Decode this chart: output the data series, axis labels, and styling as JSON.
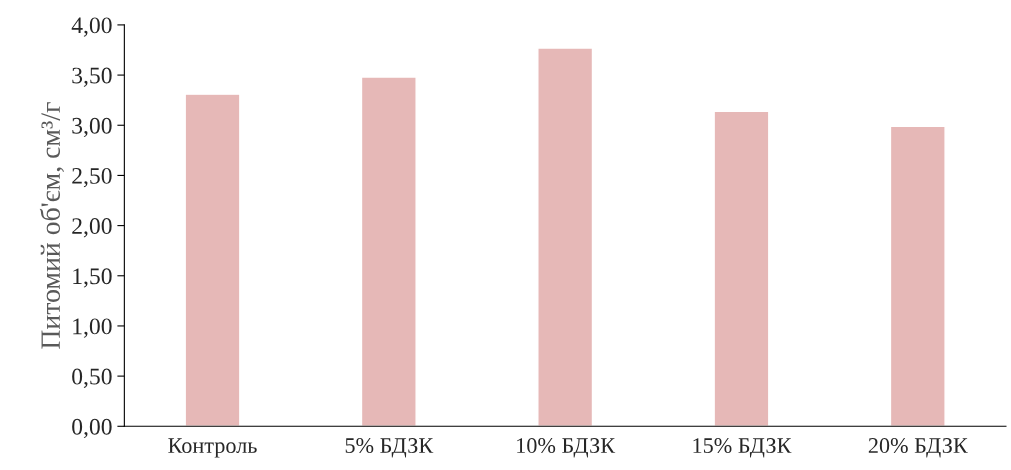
{
  "chart_data": {
    "type": "bar",
    "categories": [
      "Контроль",
      "5% БДЗК",
      "10% БДЗК",
      "15% БДЗК",
      "20% БДЗК"
    ],
    "values": [
      3.31,
      3.48,
      3.77,
      3.14,
      2.99
    ],
    "color": "#e6b8b7",
    "ylabel": "Питомий об'єм, см³/г",
    "ylim": [
      0,
      4
    ],
    "yticks": [
      {
        "value": 0,
        "label": "0,00"
      },
      {
        "value": 0.5,
        "label": "0,50"
      },
      {
        "value": 1,
        "label": "1,00"
      },
      {
        "value": 1.5,
        "label": "1,50"
      },
      {
        "value": 2,
        "label": "2,00"
      },
      {
        "value": 2.5,
        "label": "2,50"
      },
      {
        "value": 3,
        "label": "3,00"
      },
      {
        "value": 3.5,
        "label": "3,50"
      },
      {
        "value": 4,
        "label": "4,00"
      }
    ],
    "grid": false
  }
}
